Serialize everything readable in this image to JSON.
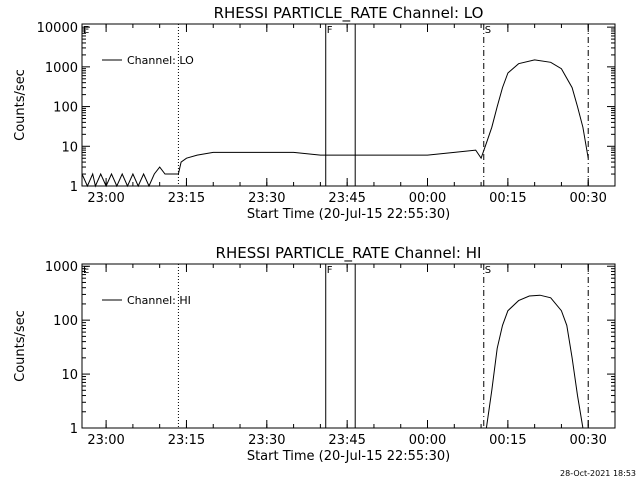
{
  "footer": {
    "timestamp": "28-Oct-2021 18:53"
  },
  "chart_data": [
    {
      "type": "line",
      "title": "RHESSI PARTICLE_RATE Channel: LO",
      "xlabel": "Start Time (20-Jul-15 22:55:30)",
      "ylabel": "Counts/sec",
      "yscale": "log",
      "xlim": [
        "22:55:30",
        "00:35:00"
      ],
      "ylim": [
        1,
        12000
      ],
      "xticks": [
        "23:00",
        "23:15",
        "23:30",
        "23:45",
        "00:00",
        "00:15",
        "00:30"
      ],
      "yticks": [
        "1",
        "10",
        "100",
        "1000",
        "10000"
      ],
      "legend": {
        "position": "top-left",
        "entries": [
          "Channel: LO"
        ]
      },
      "markers": [
        {
          "time": "22:55:30",
          "style": "dotted",
          "label": "E"
        },
        {
          "time": "23:13:30",
          "style": "dotted",
          "label": ""
        },
        {
          "time": "23:41:00",
          "style": "solid",
          "label": "F"
        },
        {
          "time": "23:46:30",
          "style": "solid",
          "label": ""
        },
        {
          "time": "00:10:30",
          "style": "dashdot",
          "label": "S"
        },
        {
          "time": "00:30:00",
          "style": "dashdot",
          "label": ""
        }
      ],
      "series": [
        {
          "name": "Channel: LO",
          "points": [
            [
              "22:55:30",
              2
            ],
            [
              "22:56:30",
              1
            ],
            [
              "22:57:30",
              2
            ],
            [
              "22:58:00",
              1
            ],
            [
              "22:59:00",
              2
            ],
            [
              "23:00:00",
              1
            ],
            [
              "23:01:00",
              2
            ],
            [
              "23:02:00",
              1
            ],
            [
              "23:03:00",
              2
            ],
            [
              "23:04:00",
              1
            ],
            [
              "23:05:00",
              2
            ],
            [
              "23:06:00",
              1
            ],
            [
              "23:07:00",
              2
            ],
            [
              "23:08:00",
              1
            ],
            [
              "23:09:00",
              2
            ],
            [
              "23:10:00",
              3
            ],
            [
              "23:11:00",
              2
            ],
            [
              "23:11:30",
              2
            ],
            [
              "23:12:00",
              2
            ],
            [
              "23:13:00",
              2
            ],
            [
              "23:13:30",
              2
            ],
            [
              "23:14:00",
              4
            ],
            [
              "23:15:00",
              5
            ],
            [
              "23:17:00",
              6
            ],
            [
              "23:20:00",
              7
            ],
            [
              "23:25:00",
              7
            ],
            [
              "23:30:00",
              7
            ],
            [
              "23:35:00",
              7
            ],
            [
              "23:40:00",
              6
            ],
            [
              "23:41:00",
              6
            ],
            [
              "23:45:00",
              6
            ],
            [
              "23:50:00",
              6
            ],
            [
              "23:55:00",
              6
            ],
            [
              "00:00:00",
              6
            ],
            [
              "00:05:00",
              7
            ],
            [
              "00:09:00",
              8
            ],
            [
              "00:10:00",
              5
            ],
            [
              "00:11:00",
              12
            ],
            [
              "00:12:00",
              30
            ],
            [
              "00:13:00",
              100
            ],
            [
              "00:14:00",
              300
            ],
            [
              "00:15:00",
              700
            ],
            [
              "00:17:00",
              1200
            ],
            [
              "00:20:00",
              1500
            ],
            [
              "00:23:00",
              1300
            ],
            [
              "00:25:00",
              900
            ],
            [
              "00:27:00",
              300
            ],
            [
              "00:28:00",
              100
            ],
            [
              "00:29:00",
              30
            ],
            [
              "00:30:00",
              5
            ]
          ]
        }
      ]
    },
    {
      "type": "line",
      "title": "RHESSI PARTICLE_RATE Channel: HI",
      "xlabel": "Start Time (20-Jul-15 22:55:30)",
      "ylabel": "Counts/sec",
      "yscale": "log",
      "xlim": [
        "22:55:30",
        "00:35:00"
      ],
      "ylim": [
        1,
        1100
      ],
      "xticks": [
        "23:00",
        "23:15",
        "23:30",
        "23:45",
        "00:00",
        "00:15",
        "00:30"
      ],
      "yticks": [
        "1",
        "10",
        "100",
        "1000"
      ],
      "legend": {
        "position": "top-left",
        "entries": [
          "Channel: HI"
        ]
      },
      "markers": [
        {
          "time": "22:55:30",
          "style": "dotted",
          "label": "E"
        },
        {
          "time": "23:13:30",
          "style": "dotted",
          "label": ""
        },
        {
          "time": "23:41:00",
          "style": "solid",
          "label": "F"
        },
        {
          "time": "23:46:30",
          "style": "solid",
          "label": ""
        },
        {
          "time": "00:10:30",
          "style": "dashdot",
          "label": "S"
        },
        {
          "time": "00:30:00",
          "style": "dashdot",
          "label": ""
        }
      ],
      "series": [
        {
          "name": "Channel: HI",
          "points": [
            [
              "00:11:00",
              1
            ],
            [
              "00:12:00",
              5
            ],
            [
              "00:13:00",
              30
            ],
            [
              "00:14:00",
              80
            ],
            [
              "00:15:00",
              150
            ],
            [
              "00:17:00",
              230
            ],
            [
              "00:19:00",
              280
            ],
            [
              "00:21:00",
              290
            ],
            [
              "00:23:00",
              260
            ],
            [
              "00:25:00",
              150
            ],
            [
              "00:26:00",
              80
            ],
            [
              "00:27:00",
              20
            ],
            [
              "00:28:00",
              4
            ],
            [
              "00:29:00",
              1
            ]
          ]
        }
      ]
    }
  ]
}
